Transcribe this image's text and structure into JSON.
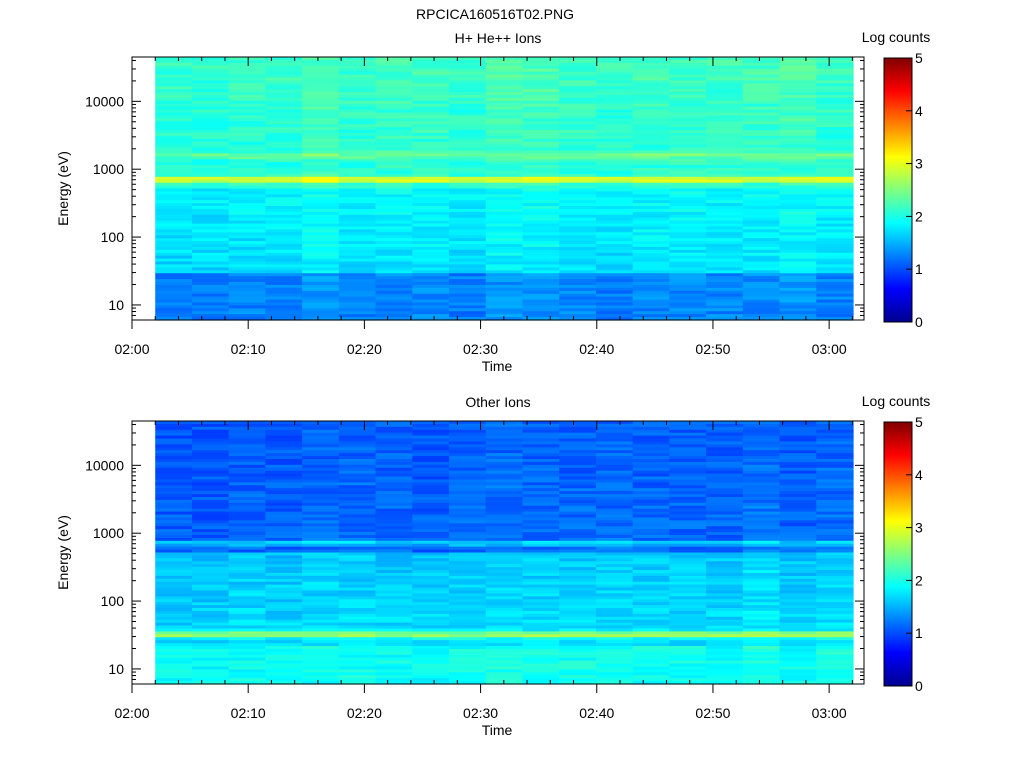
{
  "figure_title": "RPCICA160516T02.PNG",
  "chart_data": [
    {
      "type": "heatmap",
      "title": "H+ He++ Ions",
      "xlabel": "Time",
      "ylabel": "Energy (eV)",
      "x_ticks": [
        "02:00",
        "02:10",
        "02:20",
        "02:30",
        "02:40",
        "02:50",
        "03:00"
      ],
      "x_range": [
        "02:00",
        "03:03"
      ],
      "data_start": "02:02",
      "y_scale": "log",
      "y_ticks": [
        10,
        100,
        1000,
        10000
      ],
      "y_range": [
        6,
        45000
      ],
      "colorbar": {
        "label": "Log counts",
        "ticks": [
          0,
          1,
          2,
          3,
          4,
          5
        ],
        "range": [
          0,
          5
        ]
      },
      "features": [
        {
          "energy_ev": 700,
          "log_counts": 3.0,
          "description_ref": "bright band"
        },
        {
          "energy_ev": 1600,
          "log_counts": 2.4
        },
        {
          "energy_ev_range": [
            6,
            30
          ],
          "log_counts": 1.3
        },
        {
          "energy_ev_range": [
            30,
            500
          ],
          "log_counts": 1.7
        },
        {
          "energy_ev_range": [
            2000,
            45000
          ],
          "log_counts": 2.2
        }
      ]
    },
    {
      "type": "heatmap",
      "title": "Other Ions",
      "xlabel": "Time",
      "ylabel": "Energy (eV)",
      "x_ticks": [
        "02:00",
        "02:10",
        "02:20",
        "02:30",
        "02:40",
        "02:50",
        "03:00"
      ],
      "x_range": [
        "02:00",
        "03:03"
      ],
      "data_start": "02:02",
      "y_scale": "log",
      "y_ticks": [
        10,
        100,
        1000,
        10000
      ],
      "y_range": [
        6,
        45000
      ],
      "colorbar": {
        "label": "Log counts",
        "ticks": [
          0,
          1,
          2,
          3,
          4,
          5
        ],
        "range": [
          0,
          5
        ]
      },
      "features": [
        {
          "energy_ev": 32,
          "log_counts": 2.9
        },
        {
          "energy_ev": 700,
          "log_counts": 2.0
        },
        {
          "energy_ev_range": [
            6,
            25
          ],
          "log_counts": 1.9
        },
        {
          "energy_ev_range": [
            40,
            500
          ],
          "log_counts": 1.7
        },
        {
          "energy_ev_range": [
            1000,
            45000
          ],
          "log_counts": 1.1
        }
      ]
    }
  ]
}
